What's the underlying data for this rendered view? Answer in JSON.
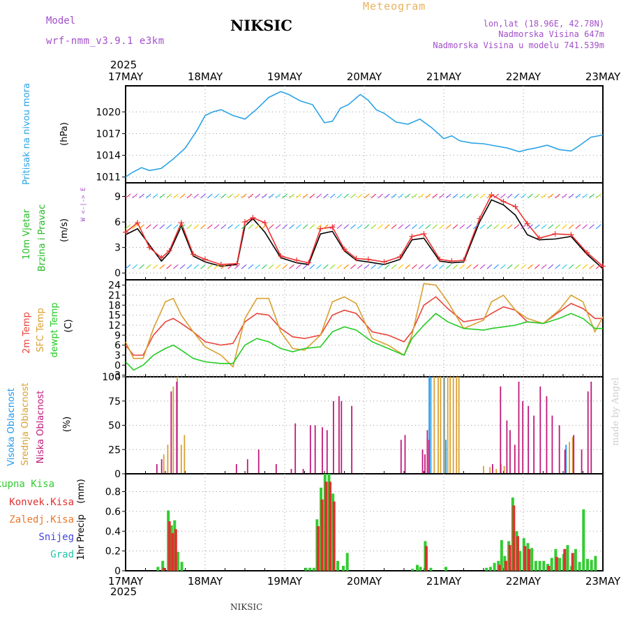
{
  "header": {
    "model_label": "Model",
    "model_value": "wrf-nmm_v3.9.1  e3km",
    "station": "NIKSIC",
    "chart_title": "Meteogram",
    "lonlat": "lon,lat (18.96E, 42.78N)",
    "altitude": "Nadmorska Visina 647m",
    "model_altitude": "Nadmorska Visina u modelu 741.539m",
    "year": "2025",
    "footer_station": "NIKSIC",
    "watermark": "made by Angel"
  },
  "x_axis": {
    "dates": [
      "17MAY",
      "18MAY",
      "19MAY",
      "20MAY",
      "21MAY",
      "22MAY",
      "23MAY"
    ],
    "year": "2025"
  },
  "colors": {
    "pressure": "#2aa3e6",
    "temp2m": "#e8443a",
    "sfc_temp": "#d9a030",
    "dewpoint": "#22cc22",
    "high_cloud": "#2299ee",
    "mid_cloud": "#d9a030",
    "low_cloud": "#c0187a",
    "total_precip": "#33cc33",
    "conv_precip": "#e03030",
    "frz_precip": "#e8782a",
    "snow": "#4444dd",
    "graupel": "#22c4a8",
    "title_purple": "#a24fc9",
    "title_orange": "#e8b25a"
  },
  "chart_data": [
    {
      "panel": "pressure",
      "type": "line",
      "ylabel_left": "Pritisak na nivou mora",
      "ylabel_unit": "(hPa)",
      "yticks": [
        1011,
        1014,
        1017,
        1020
      ],
      "ylim": [
        1010.2,
        1023.6
      ],
      "series": [
        {
          "name": "MSLP",
          "color": "#2aa3e6",
          "x_days": [
            0,
            0.08,
            0.2,
            0.3,
            0.45,
            0.6,
            0.75,
            0.9,
            1.0,
            1.1,
            1.2,
            1.35,
            1.5,
            1.65,
            1.8,
            1.95,
            2.05,
            2.2,
            2.35,
            2.5,
            2.6,
            2.7,
            2.8,
            2.95,
            3.05,
            3.15,
            3.25,
            3.4,
            3.55,
            3.7,
            3.85,
            4.0,
            4.1,
            4.2,
            4.35,
            4.5,
            4.65,
            4.8,
            4.95,
            5.05,
            5.15,
            5.3,
            5.45,
            5.6,
            5.7,
            5.85,
            6.0
          ],
          "values": [
            1011.0,
            1011.6,
            1012.3,
            1011.9,
            1012.2,
            1013.5,
            1015.0,
            1017.5,
            1019.5,
            1020.0,
            1020.3,
            1019.5,
            1019.0,
            1020.4,
            1022.0,
            1022.8,
            1022.4,
            1021.5,
            1021.0,
            1018.5,
            1018.7,
            1020.5,
            1021.0,
            1022.4,
            1021.6,
            1020.3,
            1019.8,
            1018.6,
            1018.3,
            1019.0,
            1017.8,
            1016.3,
            1016.7,
            1016.0,
            1015.7,
            1015.6,
            1015.3,
            1015.0,
            1014.5,
            1014.8,
            1015.0,
            1015.4,
            1014.8,
            1014.6,
            1015.3,
            1016.5,
            1016.8
          ]
        }
      ]
    },
    {
      "panel": "wind",
      "type": "line",
      "ylabel_left": "10m Vjetar",
      "ylabel_left2": "Brzina i Pravac",
      "ylabel_unit": "(m/s)",
      "compass": "W <-|-> E",
      "yticks": [
        0,
        3,
        6,
        9
      ],
      "ylim": [
        -0.8,
        10.6
      ],
      "series": [
        {
          "name": "speed",
          "color": "#000000",
          "x_days": [
            0,
            0.15,
            0.3,
            0.45,
            0.55,
            0.7,
            0.85,
            1.0,
            1.2,
            1.4,
            1.5,
            1.6,
            1.75,
            1.95,
            2.15,
            2.3,
            2.45,
            2.6,
            2.75,
            2.9,
            3.05,
            3.25,
            3.45,
            3.6,
            3.75,
            3.95,
            4.1,
            4.25,
            4.45,
            4.6,
            4.75,
            4.9,
            5.05,
            5.2,
            5.4,
            5.6,
            5.8,
            6.0
          ],
          "values": [
            4.5,
            5.2,
            3.3,
            1.4,
            2.4,
            5.5,
            2.0,
            1.3,
            0.8,
            1.0,
            5.5,
            6.4,
            4.8,
            1.8,
            1.2,
            1.0,
            4.6,
            4.9,
            2.6,
            1.5,
            1.3,
            1.0,
            1.6,
            3.9,
            4.1,
            1.4,
            1.2,
            1.3,
            6.0,
            8.6,
            8.0,
            6.8,
            4.5,
            3.9,
            4.0,
            4.3,
            2.2,
            0.5
          ]
        },
        {
          "name": "gust",
          "color": "#ee3030",
          "x_days": [
            0,
            0.15,
            0.3,
            0.45,
            0.55,
            0.7,
            0.85,
            1.0,
            1.2,
            1.4,
            1.5,
            1.6,
            1.75,
            1.95,
            2.15,
            2.3,
            2.45,
            2.6,
            2.75,
            2.9,
            3.05,
            3.25,
            3.45,
            3.6,
            3.75,
            3.95,
            4.1,
            4.25,
            4.45,
            4.6,
            4.75,
            4.9,
            5.05,
            5.2,
            5.4,
            5.6,
            5.8,
            6.0
          ],
          "values": [
            4.8,
            5.9,
            3.0,
            1.8,
            2.6,
            5.9,
            2.2,
            1.6,
            1.0,
            1.1,
            6.0,
            6.5,
            5.9,
            2.0,
            1.5,
            1.2,
            5.2,
            5.4,
            2.8,
            1.7,
            1.6,
            1.3,
            1.9,
            4.3,
            4.6,
            1.6,
            1.4,
            1.5,
            6.4,
            9.2,
            8.4,
            7.8,
            5.8,
            4.1,
            4.6,
            4.5,
            2.4,
            0.8
          ]
        }
      ]
    },
    {
      "panel": "temperature",
      "type": "line",
      "ylabel_left": "2m Temp",
      "ylabel_left2": "SFC Temp",
      "ylabel_left3": "dewpt Temp",
      "ylabel_unit": "(C)",
      "yticks": [
        -3,
        0,
        3,
        6,
        9,
        12,
        15,
        18,
        21,
        24
      ],
      "ylim": [
        -3.5,
        25.6
      ],
      "series": [
        {
          "name": "2m Temp",
          "color": "#e8443a",
          "x_days": [
            0,
            0.1,
            0.22,
            0.35,
            0.5,
            0.6,
            0.7,
            0.85,
            1.0,
            1.2,
            1.35,
            1.5,
            1.65,
            1.8,
            1.95,
            2.1,
            2.25,
            2.45,
            2.6,
            2.75,
            2.9,
            3.1,
            3.3,
            3.5,
            3.6,
            3.75,
            3.9,
            4.05,
            4.25,
            4.5,
            4.6,
            4.75,
            4.9,
            5.05,
            5.25,
            5.45,
            5.6,
            5.75,
            5.9,
            6.0
          ],
          "values": [
            6,
            3,
            3,
            9,
            13,
            14,
            12.5,
            10,
            7,
            6,
            6.5,
            13,
            15.5,
            15,
            11,
            8.5,
            8,
            9,
            15,
            16.5,
            15.5,
            10,
            9,
            7,
            10,
            18,
            20.5,
            17,
            13,
            14,
            15.5,
            17.5,
            16.5,
            13,
            12.5,
            16,
            18.5,
            17,
            14,
            14
          ]
        },
        {
          "name": "SFC Temp",
          "color": "#d9a030",
          "x_days": [
            0,
            0.1,
            0.22,
            0.35,
            0.5,
            0.6,
            0.7,
            0.85,
            1.0,
            1.2,
            1.35,
            1.5,
            1.65,
            1.8,
            1.95,
            2.1,
            2.25,
            2.45,
            2.6,
            2.75,
            2.9,
            3.1,
            3.3,
            3.5,
            3.6,
            3.75,
            3.9,
            4.05,
            4.25,
            4.5,
            4.6,
            4.75,
            4.9,
            5.05,
            5.25,
            5.45,
            5.6,
            5.75,
            5.9,
            6.0
          ],
          "values": [
            7,
            2,
            2,
            11,
            19,
            20,
            15,
            10,
            5.5,
            3,
            -0.5,
            14,
            20,
            20,
            10,
            5,
            4.5,
            9,
            19,
            20.5,
            18.5,
            8,
            6,
            3,
            9,
            24.5,
            24,
            19,
            11,
            13.5,
            19,
            21,
            16.5,
            14,
            12.5,
            16.5,
            21,
            19,
            10,
            14.5
          ]
        },
        {
          "name": "dewpt Temp",
          "color": "#22cc22",
          "x_days": [
            0,
            0.1,
            0.22,
            0.35,
            0.5,
            0.6,
            0.7,
            0.85,
            1.0,
            1.2,
            1.35,
            1.5,
            1.65,
            1.8,
            1.95,
            2.1,
            2.25,
            2.45,
            2.6,
            2.75,
            2.9,
            3.1,
            3.3,
            3.5,
            3.6,
            3.75,
            3.9,
            4.05,
            4.25,
            4.5,
            4.6,
            4.75,
            4.9,
            5.05,
            5.25,
            5.45,
            5.6,
            5.75,
            5.9,
            6.0
          ],
          "values": [
            1,
            -1.5,
            0,
            3,
            5,
            6,
            4.5,
            2,
            1,
            0.5,
            0.5,
            6,
            8,
            7,
            5,
            4,
            5,
            5.5,
            10,
            11.5,
            10.5,
            7,
            5,
            3,
            8,
            12,
            15.5,
            13,
            11,
            10.5,
            11,
            11.5,
            12,
            13,
            12.5,
            14,
            15.5,
            14,
            11,
            11
          ]
        }
      ]
    },
    {
      "panel": "clouds",
      "type": "bar",
      "ylabel_left": "Visoka Oblacnost",
      "ylabel_left2": "Srednja Oblacnost",
      "ylabel_left3": "Niska Oblacnost",
      "ylabel_unit": "(%)",
      "yticks": [
        0,
        25,
        50,
        75,
        100
      ],
      "ylim": [
        0,
        100
      ],
      "series": [
        {
          "name": "Visoka Oblacnost",
          "color": "#2299ee",
          "x_days": [
            3.83,
            3.85,
            4.02,
            4.04,
            5.55
          ],
          "values": [
            100,
            100,
            100,
            35,
            30
          ]
        },
        {
          "name": "Srednja Oblacnost",
          "color": "#d9a030",
          "x_days": [
            0.48,
            0.53,
            0.6,
            0.65,
            0.7,
            0.74,
            3.88,
            3.93,
            3.96,
            4.0,
            4.05,
            4.08,
            4.12,
            4.16,
            4.19,
            4.5,
            4.58,
            4.66,
            4.72,
            4.76,
            5.58,
            5.62
          ],
          "values": [
            20,
            30,
            90,
            100,
            30,
            40,
            100,
            100,
            100,
            100,
            100,
            100,
            100,
            100,
            100,
            8,
            7,
            5,
            10,
            8,
            33,
            38
          ]
        },
        {
          "name": "Niska Oblacnost",
          "color": "#c0187a",
          "x_days": [
            0.38,
            0.44,
            0.56,
            0.63,
            1.38,
            1.52,
            1.66,
            1.88,
            2.07,
            2.12,
            2.22,
            2.31,
            2.37,
            2.46,
            2.52,
            2.6,
            2.67,
            2.7,
            2.83,
            3.45,
            3.5,
            3.72,
            3.75,
            3.78,
            3.8,
            4.6,
            4.7,
            4.78,
            4.82,
            4.88,
            4.93,
            4.98,
            5.05,
            5.12,
            5.2,
            5.28,
            5.35,
            5.44,
            5.51,
            5.62,
            5.72,
            5.8,
            5.84
          ],
          "values": [
            10,
            15,
            85,
            95,
            10,
            15,
            25,
            10,
            5,
            52,
            5,
            50,
            50,
            48,
            45,
            75,
            80,
            75,
            70,
            35,
            40,
            25,
            20,
            45,
            35,
            10,
            90,
            55,
            45,
            30,
            95,
            75,
            70,
            60,
            90,
            80,
            60,
            50,
            25,
            40,
            25,
            85,
            95
          ]
        }
      ]
    },
    {
      "panel": "precipitation",
      "type": "bar",
      "ylabel_left": "1hr Precip",
      "ylabel_unit": "(mm)",
      "legend": [
        "Ukupna Kisa",
        "Konvek.Kisa",
        "Zaledj.Kisa",
        "Snijeg",
        "Grad"
      ],
      "yticks": [
        0,
        0.2,
        0.4,
        0.6,
        0.8
      ],
      "ylim": [
        0,
        0.98
      ],
      "series": [
        {
          "name": "Ukupna Kisa",
          "color": "#33cc33",
          "x_days": [
            0.42,
            0.48,
            0.55,
            0.59,
            0.63,
            0.67,
            0.72,
            2.28,
            2.33,
            2.38,
            2.42,
            2.47,
            2.52,
            2.57,
            2.62,
            2.68,
            2.75,
            2.8,
            3.62,
            3.68,
            3.72,
            3.78,
            3.85,
            4.04,
            4.55,
            4.6,
            4.65,
            4.7,
            4.74,
            4.78,
            4.83,
            4.88,
            4.93,
            4.97,
            5.02,
            5.07,
            5.12,
            5.17,
            5.22,
            5.27,
            5.32,
            5.37,
            5.42,
            5.47,
            5.52,
            5.57,
            5.62,
            5.67,
            5.72,
            5.77,
            5.82,
            5.87,
            5.92
          ],
          "values": [
            0.04,
            0.1,
            0.61,
            0.46,
            0.51,
            0.19,
            0.09,
            0.03,
            0.03,
            0.03,
            0.52,
            0.84,
            0.98,
            0.98,
            0.78,
            0.1,
            0.05,
            0.18,
            0.02,
            0.06,
            0.04,
            0.3,
            0.03,
            0.04,
            0.03,
            0.04,
            0.08,
            0.1,
            0.31,
            0.15,
            0.3,
            0.74,
            0.4,
            0.2,
            0.33,
            0.28,
            0.23,
            0.1,
            0.1,
            0.1,
            0.07,
            0.13,
            0.22,
            0.13,
            0.17,
            0.26,
            0.05,
            0.22,
            0.09,
            0.62,
            0.12,
            0.11,
            0.15
          ]
        },
        {
          "name": "Konvek.Kisa",
          "color": "#e03030",
          "x_days": [
            0.48,
            0.55,
            0.59,
            0.63,
            2.42,
            2.47,
            2.52,
            2.57,
            2.62,
            3.78,
            4.7,
            4.78,
            4.83,
            4.88,
            4.93,
            5.02,
            5.07,
            5.32,
            5.42,
            5.52,
            5.62
          ],
          "values": [
            0.03,
            0.5,
            0.38,
            0.42,
            0.45,
            0.72,
            0.9,
            0.9,
            0.7,
            0.25,
            0.06,
            0.1,
            0.26,
            0.66,
            0.35,
            0.25,
            0.22,
            0.05,
            0.14,
            0.22,
            0.18
          ]
        }
      ]
    }
  ]
}
